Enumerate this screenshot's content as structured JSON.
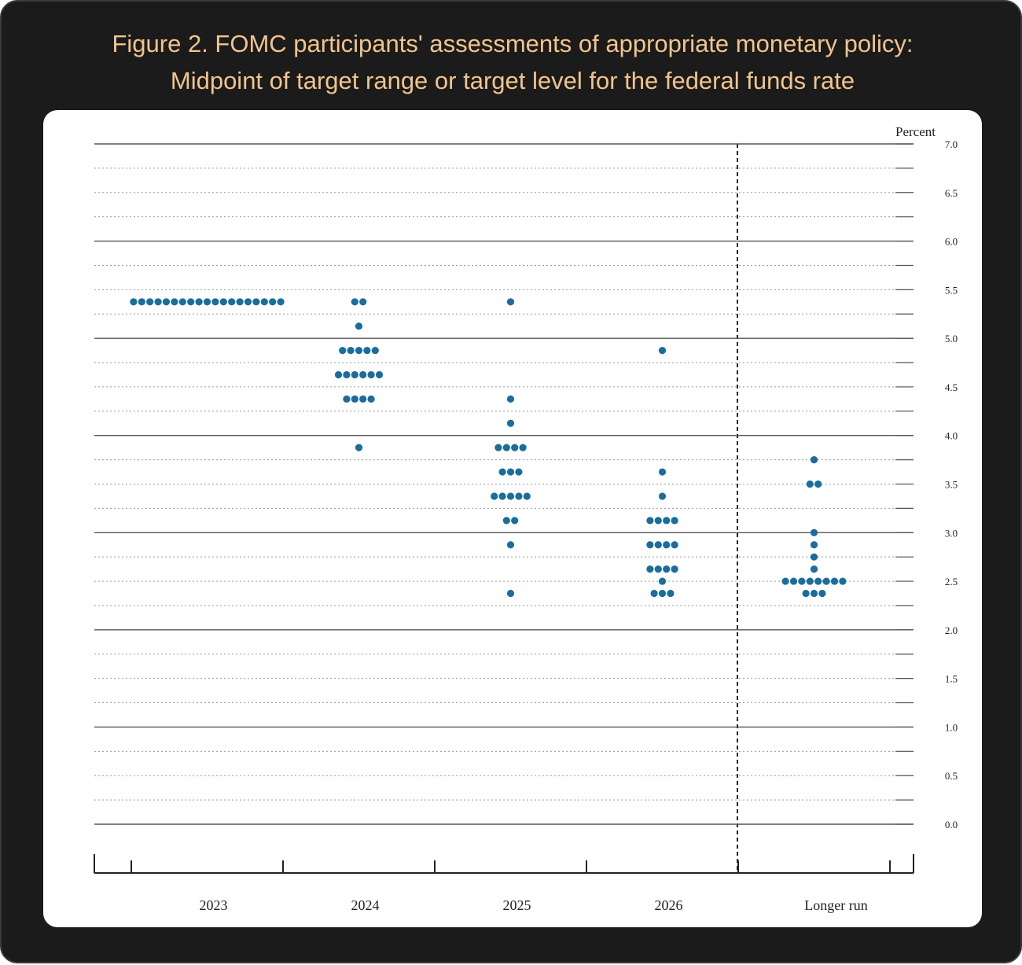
{
  "chart_data": {
    "type": "dot",
    "title": "Figure 2. FOMC participants' assessments of appropriate monetary policy:",
    "subtitle": "Midpoint of target range or target level for the federal funds rate",
    "y_label": "Percent",
    "categories": [
      "2023",
      "2024",
      "2025",
      "2026",
      "Longer run"
    ],
    "color": "#1b6d9c",
    "dots": [
      [
        5.375,
        5.375,
        5.375,
        5.375,
        5.375,
        5.375,
        5.375,
        5.375,
        5.375,
        5.375,
        5.375,
        5.375,
        5.375,
        5.375,
        5.375,
        5.375,
        5.375,
        5.375,
        5.375
      ],
      [
        5.375,
        5.375,
        5.125,
        4.875,
        4.875,
        4.875,
        4.875,
        4.875,
        4.625,
        4.625,
        4.625,
        4.625,
        4.625,
        4.625,
        4.375,
        4.375,
        4.375,
        4.375,
        3.875
      ],
      [
        5.375,
        4.375,
        4.125,
        3.875,
        3.875,
        3.875,
        3.875,
        3.625,
        3.625,
        3.625,
        3.375,
        3.375,
        3.375,
        3.375,
        3.375,
        3.125,
        3.125,
        2.875,
        2.375
      ],
      [
        4.875,
        3.625,
        3.375,
        3.125,
        3.125,
        3.125,
        3.125,
        2.875,
        2.875,
        2.875,
        2.875,
        2.625,
        2.625,
        2.625,
        2.625,
        2.5,
        2.375,
        2.375,
        2.375
      ],
      [
        3.75,
        3.5,
        3.5,
        3.0,
        2.875,
        2.75,
        2.625,
        2.5,
        2.5,
        2.5,
        2.5,
        2.5,
        2.5,
        2.5,
        2.5,
        2.375,
        2.375,
        2.375
      ]
    ],
    "ylim": [
      0,
      7
    ],
    "yticks": [
      {
        "value": 0,
        "label": "0.0"
      },
      {
        "value": 0.5,
        "label": "0.5"
      },
      {
        "value": 1,
        "label": "1.0"
      },
      {
        "value": 1.5,
        "label": "1.5"
      },
      {
        "value": 2,
        "label": "2.0"
      },
      {
        "value": 2.5,
        "label": "2.5"
      },
      {
        "value": 3,
        "label": "3.0"
      },
      {
        "value": 3.5,
        "label": "3.5"
      },
      {
        "value": 4,
        "label": "4.0"
      },
      {
        "value": 4.5,
        "label": "4.5"
      },
      {
        "value": 5,
        "label": "5.0"
      },
      {
        "value": 5.5,
        "label": "5.5"
      },
      {
        "value": 6,
        "label": "6.0"
      },
      {
        "value": 6.5,
        "label": "6.5"
      },
      {
        "value": 7,
        "label": "7.0"
      }
    ],
    "grid": true
  }
}
